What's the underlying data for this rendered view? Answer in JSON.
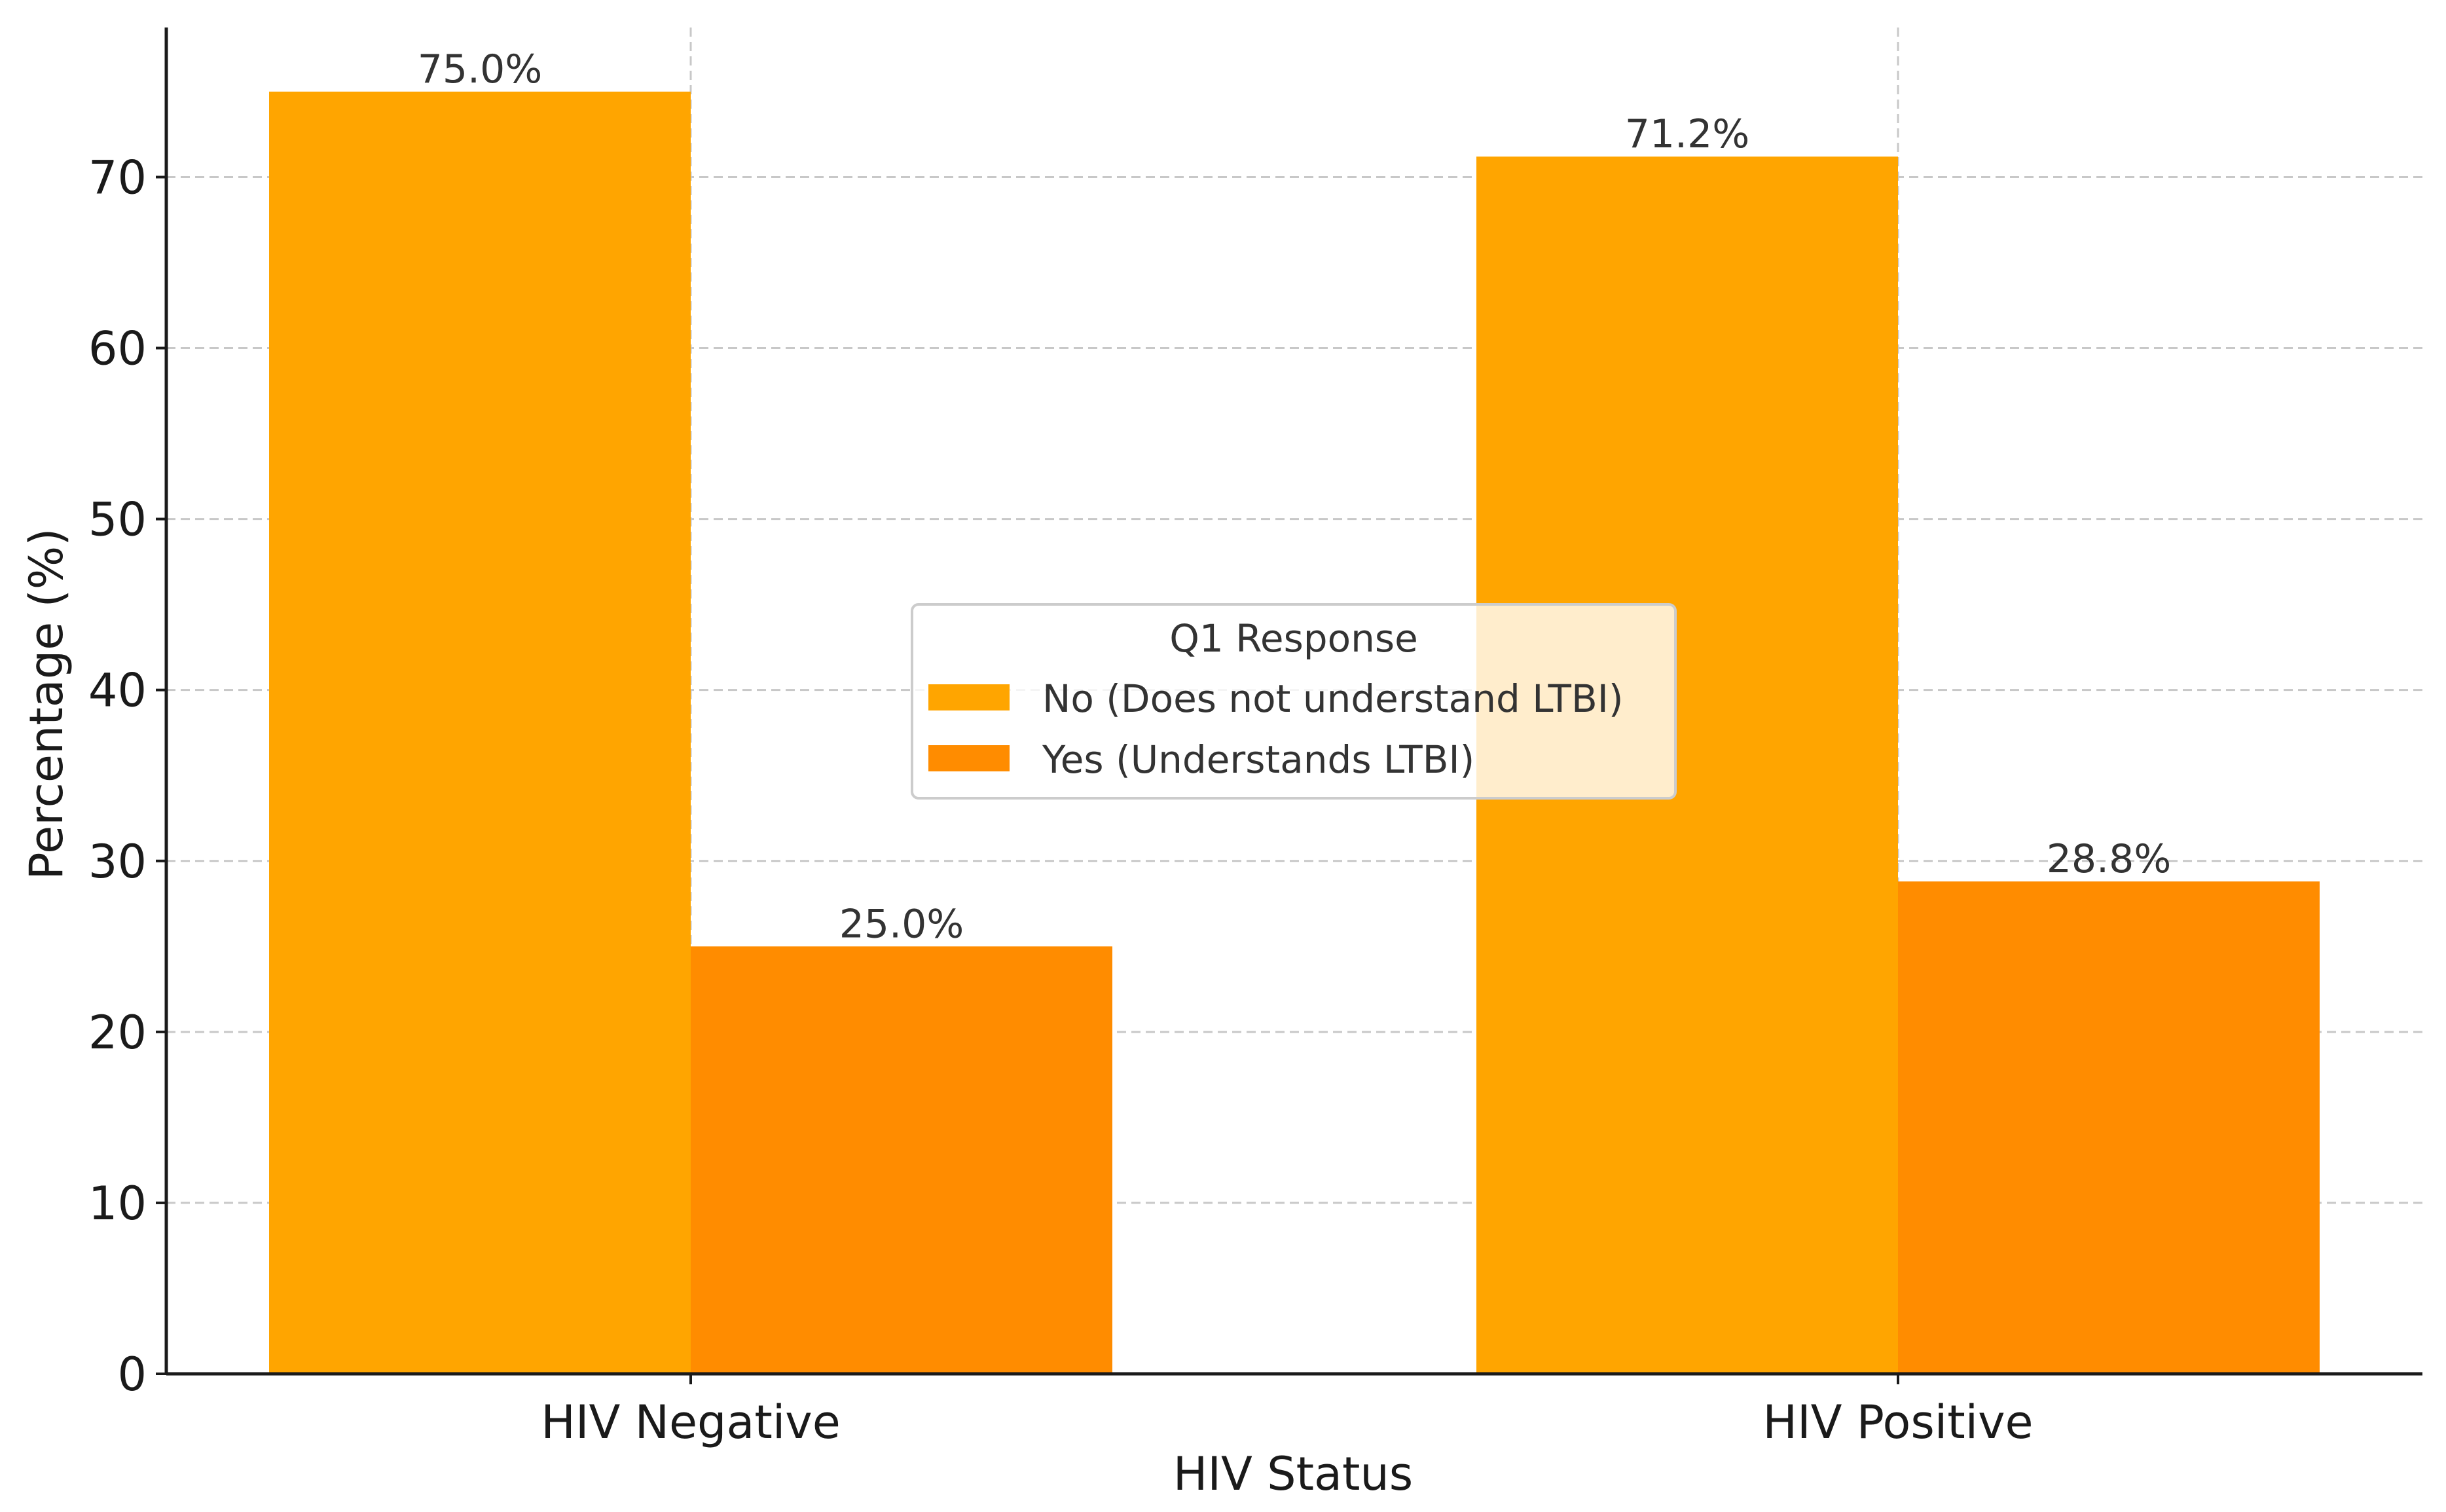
{
  "chart_data": {
    "type": "bar",
    "title": "",
    "xlabel": "HIV Status",
    "ylabel": "Percentage (%)",
    "categories": [
      "HIV Negative",
      "HIV Positive"
    ],
    "series": [
      {
        "name": "No (Does not understand LTBI)",
        "values": [
          75.0,
          71.2
        ],
        "labels": [
          "75.0%",
          "71.2%"
        ],
        "color": "#FFA500"
      },
      {
        "name": "Yes (Understands LTBI)",
        "values": [
          25.0,
          28.8
        ],
        "labels": [
          "25.0%",
          "28.8%"
        ],
        "color": "#FF8C00"
      }
    ],
    "ylim": [
      0,
      78.75
    ],
    "yticks": [
      0,
      10,
      20,
      30,
      40,
      50,
      60,
      70
    ],
    "grid": true,
    "legend": {
      "title": "Q1 Response",
      "placement": "center"
    }
  }
}
